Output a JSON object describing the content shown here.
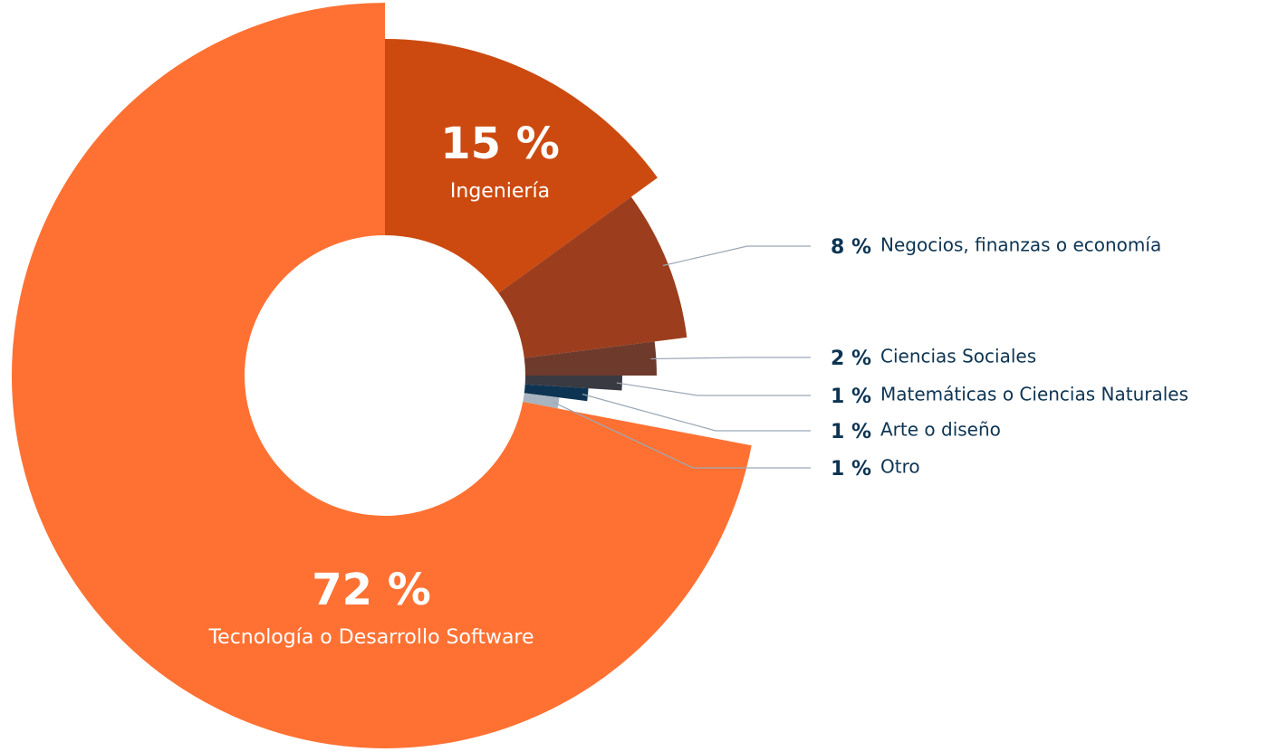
{
  "chart_data": {
    "type": "pie",
    "categories": [
      "Ingeniería",
      "Negocios, finanzas o economía",
      "Ciencias Sociales",
      "Matemáticas o Ciencias Naturales",
      "Arte o diseño",
      "Otro",
      "Tecnología o Desarrollo Software"
    ],
    "values": [
      15,
      8,
      2,
      1,
      1,
      1,
      72
    ],
    "value_labels": [
      "15 %",
      "8 %",
      "2 %",
      "1 %",
      "1 %",
      "1 %",
      "72 %"
    ],
    "colors": [
      "#cc4a10",
      "#9c3e1e",
      "#6e3a2c",
      "#3a3a42",
      "#0d3452",
      "#a8b4c0",
      "#ff7133"
    ]
  }
}
